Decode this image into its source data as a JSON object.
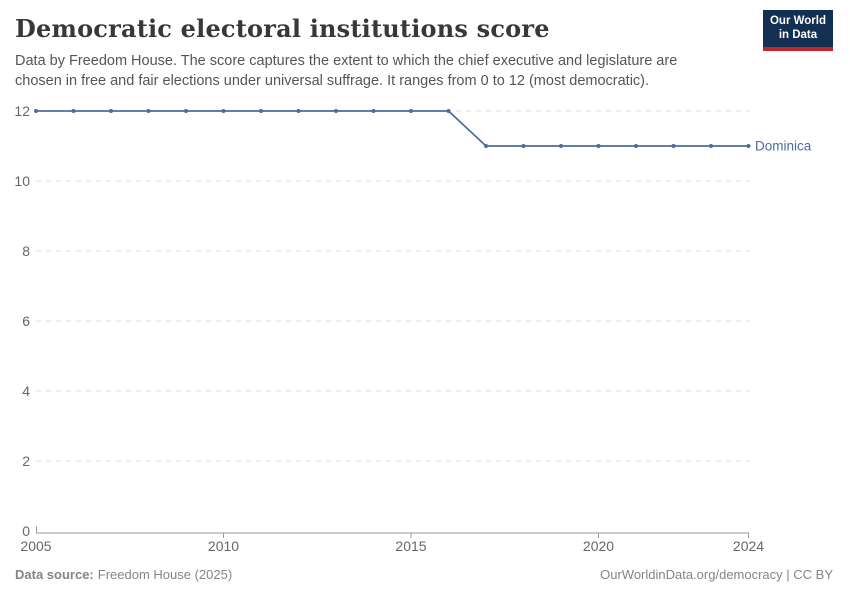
{
  "header": {
    "title": "Democratic electoral institutions score",
    "subtitle": "Data by Freedom House. The score captures the extent to which the chief executive and legislature are chosen in free and fair elections under universal suffrage. It ranges from 0 to 12 (most democratic).",
    "logo": {
      "line1": "Our World",
      "line2": "in Data",
      "bg_color": "#132f52",
      "bar_color": "#c0272d"
    }
  },
  "chart_data": {
    "type": "line",
    "title": "Democratic electoral institutions score",
    "xlabel": "",
    "ylabel": "",
    "xlim": [
      2005,
      2024
    ],
    "ylim": [
      0,
      12
    ],
    "x_ticks": [
      2005,
      2010,
      2015,
      2020,
      2024
    ],
    "y_ticks": [
      0,
      2,
      4,
      6,
      8,
      10,
      12
    ],
    "grid": "horizontal-dashed",
    "legend_position": "end-of-line-label",
    "series": [
      {
        "name": "Dominica",
        "color": "#4c6c9f",
        "x": [
          2005,
          2006,
          2007,
          2008,
          2009,
          2010,
          2011,
          2012,
          2013,
          2014,
          2015,
          2016,
          2017,
          2018,
          2019,
          2020,
          2021,
          2022,
          2023,
          2024
        ],
        "values": [
          12,
          12,
          12,
          12,
          12,
          12,
          12,
          12,
          12,
          12,
          12,
          12,
          11,
          11,
          11,
          11,
          11,
          11,
          11,
          11
        ]
      }
    ],
    "colors": {
      "gridline": "#dcdcdc",
      "axis": "#999999",
      "tick_label": "#666666"
    }
  },
  "footer": {
    "source_label": "Data source:",
    "source_value": "Freedom House (2025)",
    "link": "OurWorldinData.org/democracy | CC BY"
  }
}
